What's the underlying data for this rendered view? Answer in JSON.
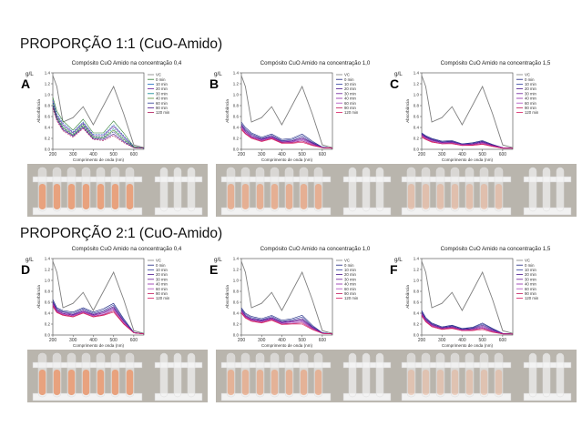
{
  "headings": {
    "row1": "PROPORÇÃO 1:1 (CuO-Amido)",
    "row2": "PROPORÇÃO 2:1 (CuO-Amido)"
  },
  "axis": {
    "unit": "g/L",
    "xlabel": "Comprimento de onda (nm)",
    "ylabel": "Absorbância",
    "xticks": [
      "200",
      "300",
      "400",
      "500",
      "600"
    ],
    "yticks": [
      "0.0",
      "0.2",
      "0.4",
      "0.6",
      "0.8",
      "1.0",
      "1.2",
      "1.4"
    ]
  },
  "legend_labels": [
    "VC",
    "0 min",
    "10 min",
    "20 min",
    "30 min",
    "40 min",
    "60 min",
    "90 min",
    "120 min"
  ],
  "colors": {
    "vc": "#7f7f7f",
    "samples_1to1_A": [
      "#2e7d32",
      "#1565c0",
      "#6a1b9a",
      "#00838f",
      "#558b2f",
      "#283593",
      "#4a148c",
      "#ad1457"
    ],
    "samples": [
      "#1a237e",
      "#303f9f",
      "#4a148c",
      "#6a1b9a",
      "#8e24aa",
      "#ab47bc",
      "#c2185b",
      "#d81b60"
    ]
  },
  "photo_colors": {
    "liquid": "#e8a27e",
    "rack": "#f2f2f2",
    "background": "#b9b5ad"
  },
  "panels": [
    {
      "letter": "A",
      "title": "Compósito CuO Amido  na concentração 0,4"
    },
    {
      "letter": "B",
      "title": "Compósito CuO Amido  na concentração 1,0"
    },
    {
      "letter": "C",
      "title": "Compósito CuO Amido  na concentração 1,5"
    },
    {
      "letter": "D",
      "title": "Compósito CuO Amido  na concentração 0,4"
    },
    {
      "letter": "E",
      "title": "Compósito CuO Amido  na concentração 1,0"
    },
    {
      "letter": "F",
      "title": "Compósito CuO Amido  na concentração 1,5"
    }
  ],
  "chart_data": [
    {
      "type": "line",
      "title": "Compósito CuO Amido  na concentração 0,4",
      "xlabel": "Comprimento de onda (nm)",
      "ylabel": "Absorbância",
      "xlim": [
        200,
        650
      ],
      "ylim": [
        0,
        1.4
      ],
      "x": [
        200,
        220,
        250,
        300,
        350,
        400,
        450,
        500,
        550,
        600,
        650
      ],
      "series": [
        {
          "name": "VC",
          "values": [
            1.35,
            1.15,
            0.5,
            0.58,
            0.78,
            0.45,
            0.8,
            1.15,
            0.65,
            0.08,
            0.03
          ]
        },
        {
          "name": "0 min",
          "values": [
            0.95,
            0.7,
            0.52,
            0.35,
            0.55,
            0.3,
            0.3,
            0.52,
            0.3,
            0.05,
            0.02
          ]
        },
        {
          "name": "10 min",
          "values": [
            0.9,
            0.65,
            0.48,
            0.32,
            0.5,
            0.27,
            0.27,
            0.45,
            0.25,
            0.05,
            0.02
          ]
        },
        {
          "name": "20 min",
          "values": [
            0.88,
            0.62,
            0.45,
            0.3,
            0.48,
            0.25,
            0.25,
            0.42,
            0.23,
            0.04,
            0.02
          ]
        },
        {
          "name": "30 min",
          "values": [
            0.85,
            0.6,
            0.42,
            0.28,
            0.46,
            0.23,
            0.23,
            0.38,
            0.2,
            0.04,
            0.02
          ]
        },
        {
          "name": "40 min",
          "values": [
            0.82,
            0.58,
            0.4,
            0.26,
            0.44,
            0.22,
            0.21,
            0.35,
            0.18,
            0.04,
            0.02
          ]
        },
        {
          "name": "60 min",
          "values": [
            0.8,
            0.56,
            0.38,
            0.25,
            0.42,
            0.2,
            0.2,
            0.32,
            0.16,
            0.03,
            0.02
          ]
        },
        {
          "name": "90 min",
          "values": [
            0.78,
            0.55,
            0.36,
            0.24,
            0.4,
            0.19,
            0.18,
            0.28,
            0.14,
            0.03,
            0.02
          ]
        },
        {
          "name": "120 min",
          "values": [
            0.75,
            0.52,
            0.34,
            0.22,
            0.38,
            0.18,
            0.16,
            0.25,
            0.12,
            0.03,
            0.02
          ]
        }
      ]
    },
    {
      "type": "line",
      "title": "Compósito CuO Amido  na concentração 1,0",
      "xlabel": "Comprimento de onda (nm)",
      "ylabel": "Absorbância",
      "xlim": [
        200,
        650
      ],
      "ylim": [
        0,
        1.4
      ],
      "x": [
        200,
        220,
        250,
        300,
        350,
        400,
        450,
        500,
        550,
        600,
        650
      ],
      "series": [
        {
          "name": "VC",
          "values": [
            1.35,
            1.15,
            0.5,
            0.58,
            0.78,
            0.45,
            0.8,
            1.15,
            0.65,
            0.08,
            0.03
          ]
        },
        {
          "name": "0 min",
          "values": [
            0.5,
            0.4,
            0.3,
            0.22,
            0.28,
            0.18,
            0.2,
            0.28,
            0.15,
            0.04,
            0.02
          ]
        },
        {
          "name": "10 min",
          "values": [
            0.47,
            0.37,
            0.28,
            0.2,
            0.26,
            0.16,
            0.18,
            0.25,
            0.13,
            0.04,
            0.02
          ]
        },
        {
          "name": "20 min",
          "values": [
            0.45,
            0.35,
            0.26,
            0.19,
            0.24,
            0.15,
            0.16,
            0.22,
            0.12,
            0.03,
            0.02
          ]
        },
        {
          "name": "30 min",
          "values": [
            0.43,
            0.33,
            0.24,
            0.18,
            0.23,
            0.14,
            0.15,
            0.2,
            0.11,
            0.03,
            0.02
          ]
        },
        {
          "name": "40 min",
          "values": [
            0.42,
            0.32,
            0.23,
            0.17,
            0.22,
            0.13,
            0.14,
            0.18,
            0.1,
            0.03,
            0.02
          ]
        },
        {
          "name": "60 min",
          "values": [
            0.4,
            0.3,
            0.22,
            0.16,
            0.21,
            0.12,
            0.13,
            0.16,
            0.09,
            0.03,
            0.02
          ]
        },
        {
          "name": "90 min",
          "values": [
            0.38,
            0.29,
            0.21,
            0.15,
            0.2,
            0.12,
            0.12,
            0.15,
            0.08,
            0.03,
            0.02
          ]
        },
        {
          "name": "120 min",
          "values": [
            0.36,
            0.28,
            0.2,
            0.14,
            0.19,
            0.11,
            0.11,
            0.13,
            0.07,
            0.03,
            0.02
          ]
        }
      ]
    },
    {
      "type": "line",
      "title": "Compósito CuO Amido  na concentração 1,5",
      "xlabel": "Comprimento de onda (nm)",
      "ylabel": "Absorbância",
      "xlim": [
        200,
        650
      ],
      "ylim": [
        0,
        1.4
      ],
      "x": [
        200,
        220,
        250,
        300,
        350,
        400,
        450,
        500,
        550,
        600,
        650
      ],
      "series": [
        {
          "name": "VC",
          "values": [
            1.35,
            1.15,
            0.5,
            0.58,
            0.78,
            0.45,
            0.8,
            1.15,
            0.65,
            0.08,
            0.03
          ]
        },
        {
          "name": "0 min",
          "values": [
            0.3,
            0.25,
            0.2,
            0.15,
            0.16,
            0.1,
            0.12,
            0.16,
            0.09,
            0.03,
            0.02
          ]
        },
        {
          "name": "10 min",
          "values": [
            0.29,
            0.24,
            0.19,
            0.14,
            0.15,
            0.1,
            0.11,
            0.15,
            0.08,
            0.03,
            0.02
          ]
        },
        {
          "name": "20 min",
          "values": [
            0.28,
            0.23,
            0.18,
            0.13,
            0.14,
            0.09,
            0.1,
            0.14,
            0.08,
            0.03,
            0.02
          ]
        },
        {
          "name": "30 min",
          "values": [
            0.27,
            0.22,
            0.17,
            0.12,
            0.13,
            0.09,
            0.1,
            0.13,
            0.07,
            0.03,
            0.02
          ]
        },
        {
          "name": "40 min",
          "values": [
            0.26,
            0.21,
            0.16,
            0.12,
            0.12,
            0.08,
            0.09,
            0.12,
            0.07,
            0.03,
            0.02
          ]
        },
        {
          "name": "60 min",
          "values": [
            0.25,
            0.2,
            0.15,
            0.11,
            0.12,
            0.08,
            0.08,
            0.11,
            0.06,
            0.02,
            0.02
          ]
        },
        {
          "name": "90 min",
          "values": [
            0.24,
            0.19,
            0.14,
            0.1,
            0.11,
            0.07,
            0.08,
            0.1,
            0.06,
            0.02,
            0.02
          ]
        },
        {
          "name": "120 min",
          "values": [
            0.22,
            0.18,
            0.13,
            0.1,
            0.1,
            0.07,
            0.07,
            0.09,
            0.05,
            0.02,
            0.02
          ]
        }
      ]
    },
    {
      "type": "line",
      "title": "Compósito CuO Amido  na concentração 0,4",
      "xlabel": "Comprimento de onda (nm)",
      "ylabel": "Absorbância",
      "xlim": [
        200,
        650
      ],
      "ylim": [
        0,
        1.4
      ],
      "x": [
        200,
        220,
        250,
        300,
        350,
        400,
        450,
        500,
        550,
        600,
        650
      ],
      "series": [
        {
          "name": "VC",
          "values": [
            1.35,
            1.15,
            0.5,
            0.58,
            0.78,
            0.45,
            0.8,
            1.15,
            0.65,
            0.08,
            0.03
          ]
        },
        {
          "name": "0 min",
          "values": [
            0.65,
            0.5,
            0.45,
            0.42,
            0.5,
            0.42,
            0.48,
            0.58,
            0.3,
            0.05,
            0.02
          ]
        },
        {
          "name": "10 min",
          "values": [
            0.62,
            0.48,
            0.43,
            0.4,
            0.48,
            0.4,
            0.45,
            0.55,
            0.28,
            0.05,
            0.02
          ]
        },
        {
          "name": "20 min",
          "values": [
            0.6,
            0.46,
            0.42,
            0.38,
            0.46,
            0.38,
            0.43,
            0.52,
            0.26,
            0.04,
            0.02
          ]
        },
        {
          "name": "30 min",
          "values": [
            0.58,
            0.45,
            0.4,
            0.37,
            0.44,
            0.37,
            0.41,
            0.5,
            0.25,
            0.04,
            0.02
          ]
        },
        {
          "name": "40 min",
          "values": [
            0.57,
            0.44,
            0.39,
            0.36,
            0.43,
            0.36,
            0.4,
            0.48,
            0.24,
            0.04,
            0.02
          ]
        },
        {
          "name": "60 min",
          "values": [
            0.55,
            0.43,
            0.38,
            0.35,
            0.42,
            0.35,
            0.38,
            0.46,
            0.22,
            0.04,
            0.02
          ]
        },
        {
          "name": "90 min",
          "values": [
            0.54,
            0.42,
            0.37,
            0.34,
            0.41,
            0.34,
            0.37,
            0.44,
            0.21,
            0.04,
            0.02
          ]
        },
        {
          "name": "120 min",
          "values": [
            0.52,
            0.41,
            0.36,
            0.33,
            0.4,
            0.33,
            0.36,
            0.42,
            0.2,
            0.04,
            0.02
          ]
        }
      ]
    },
    {
      "type": "line",
      "title": "Compósito CuO Amido  na concentração 1,0",
      "xlabel": "Comprimento de onda (nm)",
      "ylabel": "Absorbância",
      "xlim": [
        200,
        650
      ],
      "ylim": [
        0,
        1.4
      ],
      "x": [
        200,
        220,
        250,
        300,
        350,
        400,
        450,
        500,
        550,
        600,
        650
      ],
      "series": [
        {
          "name": "VC",
          "values": [
            1.35,
            1.15,
            0.5,
            0.58,
            0.78,
            0.45,
            0.8,
            1.15,
            0.65,
            0.08,
            0.03
          ]
        },
        {
          "name": "0 min",
          "values": [
            0.5,
            0.4,
            0.34,
            0.3,
            0.36,
            0.27,
            0.3,
            0.36,
            0.18,
            0.04,
            0.02
          ]
        },
        {
          "name": "10 min",
          "values": [
            0.48,
            0.38,
            0.32,
            0.28,
            0.34,
            0.25,
            0.28,
            0.33,
            0.16,
            0.04,
            0.02
          ]
        },
        {
          "name": "20 min",
          "values": [
            0.46,
            0.36,
            0.3,
            0.27,
            0.32,
            0.24,
            0.26,
            0.3,
            0.15,
            0.04,
            0.02
          ]
        },
        {
          "name": "30 min",
          "values": [
            0.45,
            0.35,
            0.29,
            0.26,
            0.31,
            0.23,
            0.25,
            0.28,
            0.14,
            0.03,
            0.02
          ]
        },
        {
          "name": "40 min",
          "values": [
            0.44,
            0.34,
            0.28,
            0.25,
            0.3,
            0.22,
            0.24,
            0.26,
            0.13,
            0.03,
            0.02
          ]
        },
        {
          "name": "60 min",
          "values": [
            0.42,
            0.33,
            0.27,
            0.24,
            0.29,
            0.21,
            0.22,
            0.24,
            0.12,
            0.03,
            0.02
          ]
        },
        {
          "name": "90 min",
          "values": [
            0.41,
            0.32,
            0.26,
            0.23,
            0.28,
            0.2,
            0.21,
            0.22,
            0.11,
            0.03,
            0.02
          ]
        },
        {
          "name": "120 min",
          "values": [
            0.4,
            0.31,
            0.25,
            0.22,
            0.27,
            0.19,
            0.2,
            0.2,
            0.1,
            0.03,
            0.02
          ]
        }
      ]
    },
    {
      "type": "line",
      "title": "Compósito CuO Amido  na concentração 1,5",
      "xlabel": "Comprimento de onda (nm)",
      "ylabel": "Absorbância",
      "xlim": [
        200,
        650
      ],
      "ylim": [
        0,
        1.4
      ],
      "x": [
        200,
        220,
        250,
        300,
        350,
        400,
        450,
        500,
        550,
        600,
        650
      ],
      "series": [
        {
          "name": "VC",
          "values": [
            1.35,
            1.15,
            0.5,
            0.58,
            0.78,
            0.45,
            0.8,
            1.15,
            0.65,
            0.08,
            0.03
          ]
        },
        {
          "name": "0 min",
          "values": [
            0.45,
            0.32,
            0.22,
            0.15,
            0.18,
            0.12,
            0.14,
            0.22,
            0.12,
            0.03,
            0.02
          ]
        },
        {
          "name": "10 min",
          "values": [
            0.43,
            0.3,
            0.21,
            0.14,
            0.17,
            0.11,
            0.13,
            0.2,
            0.11,
            0.03,
            0.02
          ]
        },
        {
          "name": "20 min",
          "values": [
            0.41,
            0.29,
            0.2,
            0.13,
            0.16,
            0.1,
            0.12,
            0.18,
            0.1,
            0.03,
            0.02
          ]
        },
        {
          "name": "30 min",
          "values": [
            0.4,
            0.28,
            0.19,
            0.13,
            0.15,
            0.1,
            0.11,
            0.16,
            0.09,
            0.03,
            0.02
          ]
        },
        {
          "name": "40 min",
          "values": [
            0.38,
            0.27,
            0.18,
            0.12,
            0.14,
            0.09,
            0.1,
            0.14,
            0.08,
            0.02,
            0.02
          ]
        },
        {
          "name": "60 min",
          "values": [
            0.37,
            0.26,
            0.17,
            0.11,
            0.13,
            0.09,
            0.1,
            0.13,
            0.07,
            0.02,
            0.02
          ]
        },
        {
          "name": "90 min",
          "values": [
            0.36,
            0.25,
            0.16,
            0.11,
            0.13,
            0.08,
            0.09,
            0.12,
            0.06,
            0.02,
            0.02
          ]
        },
        {
          "name": "120 min",
          "values": [
            0.35,
            0.24,
            0.15,
            0.1,
            0.12,
            0.08,
            0.08,
            0.1,
            0.05,
            0.02,
            0.02
          ]
        }
      ]
    }
  ]
}
